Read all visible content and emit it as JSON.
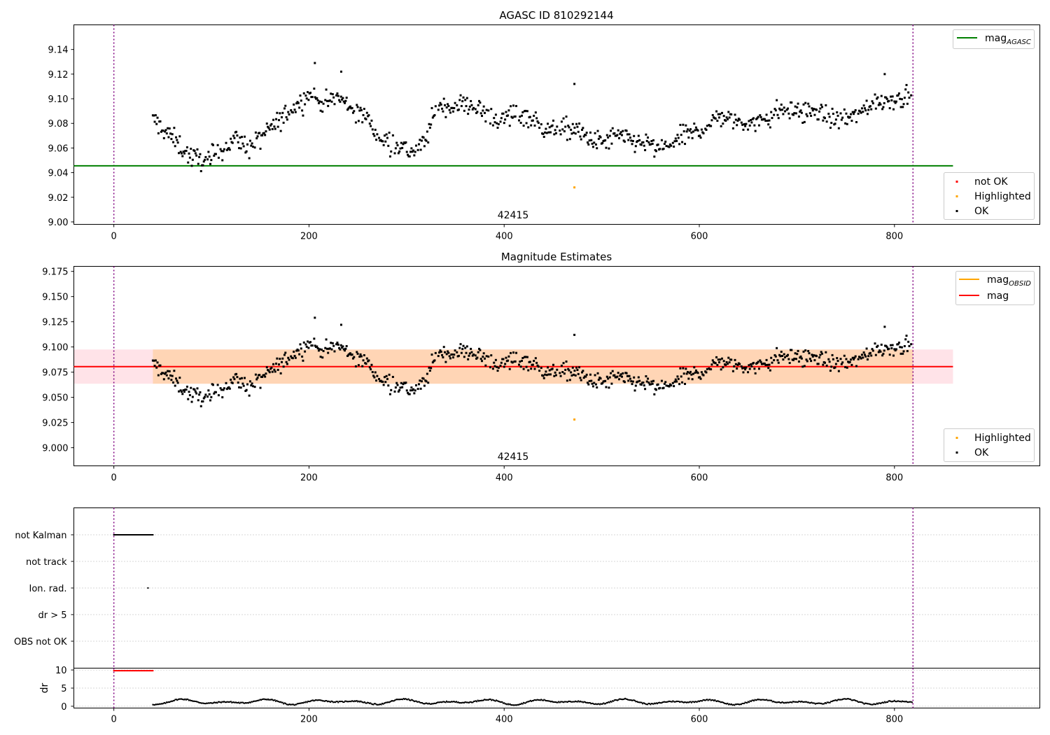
{
  "chart_data": [
    {
      "type": "scatter",
      "title": "AGASC ID 810292144",
      "annotation": "42415",
      "xlim": [
        -41,
        949
      ],
      "ylim": [
        8.998,
        9.16
      ],
      "xticks": [
        0,
        200,
        400,
        600,
        800
      ],
      "yticks": [
        9.0,
        9.02,
        9.04,
        9.06,
        9.08,
        9.1,
        9.12,
        9.14
      ],
      "ytick_labels": [
        "9.00",
        "9.02",
        "9.04",
        "9.06",
        "9.08",
        "9.10",
        "9.12",
        "9.14"
      ],
      "vlines": [
        0,
        819
      ],
      "hline": {
        "y": 9.0455,
        "x0": -41,
        "x1": 860,
        "color": "#008000"
      },
      "highlighted_point": {
        "x": 472,
        "y": 9.028
      },
      "line_legend": [
        {
          "label": "mag",
          "sub": "AGASC",
          "color": "#008000"
        }
      ],
      "marker_legend": [
        {
          "label": "not OK",
          "color": "#ff0000"
        },
        {
          "label": "Highlighted",
          "color": "#ffa500"
        },
        {
          "label": "OK",
          "color": "#000000"
        }
      ],
      "series_name": "OK"
    },
    {
      "type": "scatter",
      "title": "Magnitude Estimates",
      "annotation": "42415",
      "xlim": [
        -41,
        949
      ],
      "ylim": [
        8.982,
        9.18
      ],
      "xticks": [
        0,
        200,
        400,
        600,
        800
      ],
      "yticks": [
        9.0,
        9.025,
        9.05,
        9.075,
        9.1,
        9.125,
        9.15,
        9.175
      ],
      "ytick_labels": [
        "9.000",
        "9.025",
        "9.050",
        "9.075",
        "9.100",
        "9.125",
        "9.150",
        "9.175"
      ],
      "vlines": [
        0,
        819
      ],
      "mean": 9.0805,
      "band": [
        9.0635,
        9.0975
      ],
      "band_x": [
        -41,
        860
      ],
      "highlighted_point": {
        "x": 472,
        "y": 9.028
      },
      "line_legend": [
        {
          "label": "mag",
          "sub": "OBSID",
          "color": "#ffa500"
        },
        {
          "label": "mag",
          "sub": "",
          "color": "#ff0000"
        }
      ],
      "marker_legend": [
        {
          "label": "Highlighted",
          "color": "#ffa500"
        },
        {
          "label": "OK",
          "color": "#000000"
        }
      ],
      "series_name": "OK"
    },
    {
      "type": "scatter",
      "title": "",
      "categories": [
        "not Kalman",
        "not track",
        "Ion. rad.",
        "dr > 5",
        "OBS not OK"
      ],
      "flag_not_kalman_x": [
        0,
        40
      ],
      "flag_ion_rad_x": 35,
      "xlim": [
        -41,
        949
      ],
      "vlines": [
        0,
        819
      ]
    },
    {
      "type": "scatter",
      "title": "",
      "ylabel": "dr",
      "ylim": [
        -0.5,
        10.5
      ],
      "yticks": [
        0,
        5,
        10
      ],
      "ytick_labels": [
        "0",
        "5",
        "10"
      ],
      "xticks": [
        0,
        200,
        400,
        600,
        800
      ],
      "xlim": [
        -41,
        949
      ],
      "vlines": [
        0,
        819
      ],
      "red_points": {
        "x": [
          0,
          40
        ],
        "y": 9.8
      },
      "ok_dr_range": [
        0.3,
        2.4
      ]
    }
  ]
}
